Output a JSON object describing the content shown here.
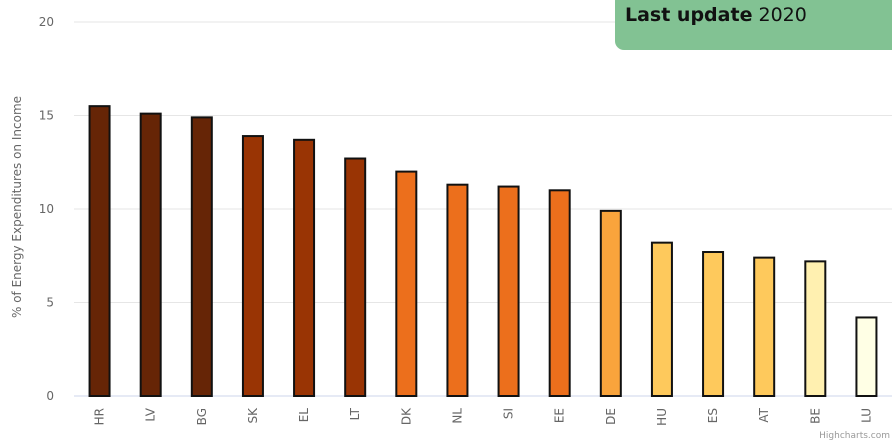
{
  "chart_data": {
    "type": "bar",
    "categories": [
      "HR",
      "LV",
      "BG",
      "SK",
      "EL",
      "LT",
      "DK",
      "NL",
      "SI",
      "EE",
      "DE",
      "HU",
      "ES",
      "AT",
      "BE",
      "LU"
    ],
    "values": [
      15.5,
      15.1,
      14.9,
      13.9,
      13.7,
      12.7,
      12.0,
      11.3,
      11.2,
      11.0,
      9.9,
      8.2,
      7.7,
      7.4,
      7.2,
      4.2
    ],
    "colors": [
      "#662506",
      "#662506",
      "#662506",
      "#993404",
      "#993404",
      "#993404",
      "#ec6f1c",
      "#ec6f1c",
      "#ec6f1c",
      "#ec6f1c",
      "#f9a43c",
      "#fec95c",
      "#fec95c",
      "#fec95c",
      "#fff0b0",
      "#ffffe5"
    ],
    "title": "",
    "ylabel": "% of Energy Expenditures on Income",
    "ylim": [
      0,
      20
    ],
    "yticks": [
      0,
      5,
      10,
      15,
      20
    ],
    "grid": true,
    "credits": "Highcharts.com"
  },
  "update_box": {
    "label": "Last update",
    "value": "2020"
  }
}
